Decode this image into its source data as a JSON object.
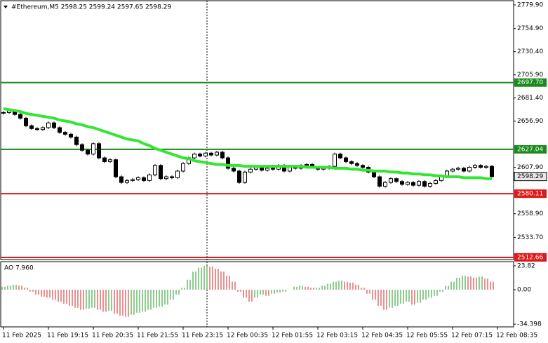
{
  "chart_data": {
    "type": "candlestick",
    "title": "#Ethereum,M5  2598.25 2599.24 2597.65 2598.29",
    "closes": [
      2666,
      2668,
      2664,
      2660,
      2652,
      2649,
      2648,
      2650,
      2655,
      2650,
      2645,
      2643,
      2640,
      2632,
      2626,
      2622,
      2633,
      2618,
      2614,
      2616,
      2598,
      2592,
      2594,
      2595,
      2597,
      2594,
      2600,
      2610,
      2596,
      2598,
      2597,
      2604,
      2612,
      2618,
      2622,
      2620,
      2623,
      2621,
      2624,
      2618,
      2607,
      2604,
      2592,
      2603,
      2606,
      2608,
      2605,
      2607,
      2606,
      2610,
      2604,
      2609,
      2607,
      2610,
      2611,
      2608,
      2606,
      2607,
      2609,
      2622,
      2618,
      2614,
      2612,
      2610,
      2608,
      2603,
      2598,
      2588,
      2592,
      2596,
      2593,
      2590,
      2592,
      2589,
      2593,
      2588,
      2591,
      2594,
      2598,
      2604,
      2606,
      2607,
      2604,
      2608,
      2610,
      2608,
      2609,
      2598.29
    ],
    "candle_color": "#000000",
    "ma": {
      "color": "#33e633",
      "values": [
        2670,
        2669,
        2668,
        2667,
        2665,
        2664,
        2663,
        2662,
        2661,
        2660,
        2658,
        2657,
        2656,
        2654,
        2653,
        2651,
        2650,
        2648,
        2646,
        2644,
        2642,
        2640,
        2638,
        2637,
        2636,
        2633,
        2631,
        2628,
        2626,
        2624,
        2622,
        2620,
        2618,
        2617,
        2615,
        2614,
        2613,
        2612,
        2611,
        2611,
        2610,
        2610,
        2610,
        2609,
        2609,
        2609,
        2609,
        2609,
        2609,
        2609,
        2609,
        2609,
        2609,
        2609,
        2608,
        2608,
        2608,
        2608,
        2608,
        2607,
        2607,
        2607,
        2606,
        2606,
        2605,
        2605,
        2604,
        2604,
        2604,
        2603,
        2603,
        2602,
        2602,
        2601,
        2601,
        2600,
        2600,
        2599,
        2599,
        2598,
        2598,
        2598,
        2597,
        2597,
        2597,
        2597,
        2596,
        2596
      ]
    },
    "ylim": [
      2510.4,
      2783.6
    ],
    "yticks": [
      {
        "value": 2779.9,
        "label": "2779.90"
      },
      {
        "value": 2754.9,
        "label": "2754.90"
      },
      {
        "value": 2730.4,
        "label": "2730.40"
      },
      {
        "value": 2705.9,
        "label": "2705.90"
      },
      {
        "value": 2681.4,
        "label": "2681.40"
      },
      {
        "value": 2656.9,
        "label": "2656.90"
      },
      {
        "value": 2607.9,
        "label": "2607.90"
      },
      {
        "value": 2558.9,
        "label": "2558.90"
      },
      {
        "value": 2533.7,
        "label": "2533.70"
      }
    ],
    "levels": [
      {
        "value": 2697.7,
        "label": "2697.70",
        "color": "#1a8a1a"
      },
      {
        "value": 2627.04,
        "label": "2627.04",
        "color": "#1a8a1a"
      },
      {
        "value": 2580.11,
        "label": "2580.11",
        "color": "#e01818"
      },
      {
        "value": 2512.66,
        "label": "2512.66",
        "color": "#e01818"
      }
    ],
    "current_price": {
      "value": 2598.29,
      "label": "2598.29"
    },
    "indicator": {
      "type": "histogram",
      "title": "AO 7.960",
      "up_color": "#1f9a1f",
      "down_color": "#d42020",
      "values": [
        3,
        4,
        5,
        4,
        2,
        -2,
        -5,
        -7,
        -8,
        -10,
        -12,
        -14,
        -16,
        -18,
        -20,
        -19,
        -18,
        -20,
        -22,
        -21,
        -24,
        -26,
        -27,
        -25,
        -23,
        -22,
        -20,
        -18,
        -17,
        -15,
        -10,
        -5,
        2,
        10,
        18,
        22,
        24,
        23,
        21,
        18,
        14,
        8,
        -2,
        -8,
        -12,
        -8,
        -5,
        -6,
        -4,
        -3,
        -2,
        0,
        3,
        4,
        3,
        2,
        2,
        4,
        6,
        8,
        9,
        8,
        7,
        5,
        2,
        -4,
        -10,
        -16,
        -20,
        -18,
        -16,
        -14,
        -12,
        -15,
        -13,
        -10,
        -8,
        -6,
        -2,
        4,
        8,
        12,
        14,
        13,
        12,
        13,
        11,
        7.96
      ],
      "ylim": [
        -37.1,
        27.3
      ],
      "yticks": [
        23.82,
        {
          "value": 0,
          "label": "0.00"
        },
        -34.398
      ]
    },
    "time_labels": [
      "11 Feb 2025",
      "11 Feb 19:15",
      "11 Feb 20:35",
      "11 Feb 21:55",
      "11 Feb 23:15",
      "12 Feb 00:35",
      "12 Feb 01:55",
      "12 Feb 03:15",
      "12 Feb 04:35",
      "12 Feb 05:55",
      "12 Feb 07:15",
      "12 Feb 08:35"
    ]
  }
}
